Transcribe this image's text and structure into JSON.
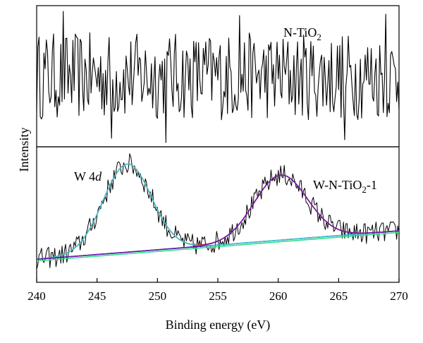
{
  "chart_data": {
    "type": "line",
    "xlabel": "Binding energy (eV)",
    "ylabel": "Intensity",
    "xlim": [
      240,
      270
    ],
    "x_ticks": [
      240,
      245,
      250,
      255,
      260,
      265,
      270
    ],
    "grid": false,
    "panels": [
      {
        "name": "top",
        "label_main": "N-TiO",
        "label_sub": "2",
        "noise_level": 0.5,
        "spikes": [
          {
            "x": 242.2,
            "y": 0.96
          },
          {
            "x": 256.8,
            "y": 0.93
          },
          {
            "x": 250.7,
            "y": 0.03
          },
          {
            "x": 246.2,
            "y": 0.06
          },
          {
            "x": 265.5,
            "y": 0.05
          },
          {
            "x": 268.9,
            "y": 0.94
          }
        ]
      },
      {
        "name": "bottom",
        "label_w_main": "W 4",
        "label_w_ital": "d",
        "label_wn_main": "W-N-TiO",
        "label_wn_sub": "2",
        "label_wn_tail": "-1",
        "baseline": {
          "x0": 240,
          "y0": 0.17,
          "x1": 270,
          "y1": 0.38
        },
        "peaks": [
          {
            "center": 247.5,
            "height": 0.65,
            "width": 2.0
          },
          {
            "center": 260.2,
            "height": 0.48,
            "width": 2.2
          }
        ],
        "noise_amplitude": 0.05
      }
    ],
    "series_colors": {
      "data": "#000000",
      "envelope": "#e8241f",
      "peak_w4d": "#3cc4cf",
      "peak_wn": "#6a1aa8",
      "background": "#1b2fb0",
      "background_alt": "#34e08a"
    }
  }
}
